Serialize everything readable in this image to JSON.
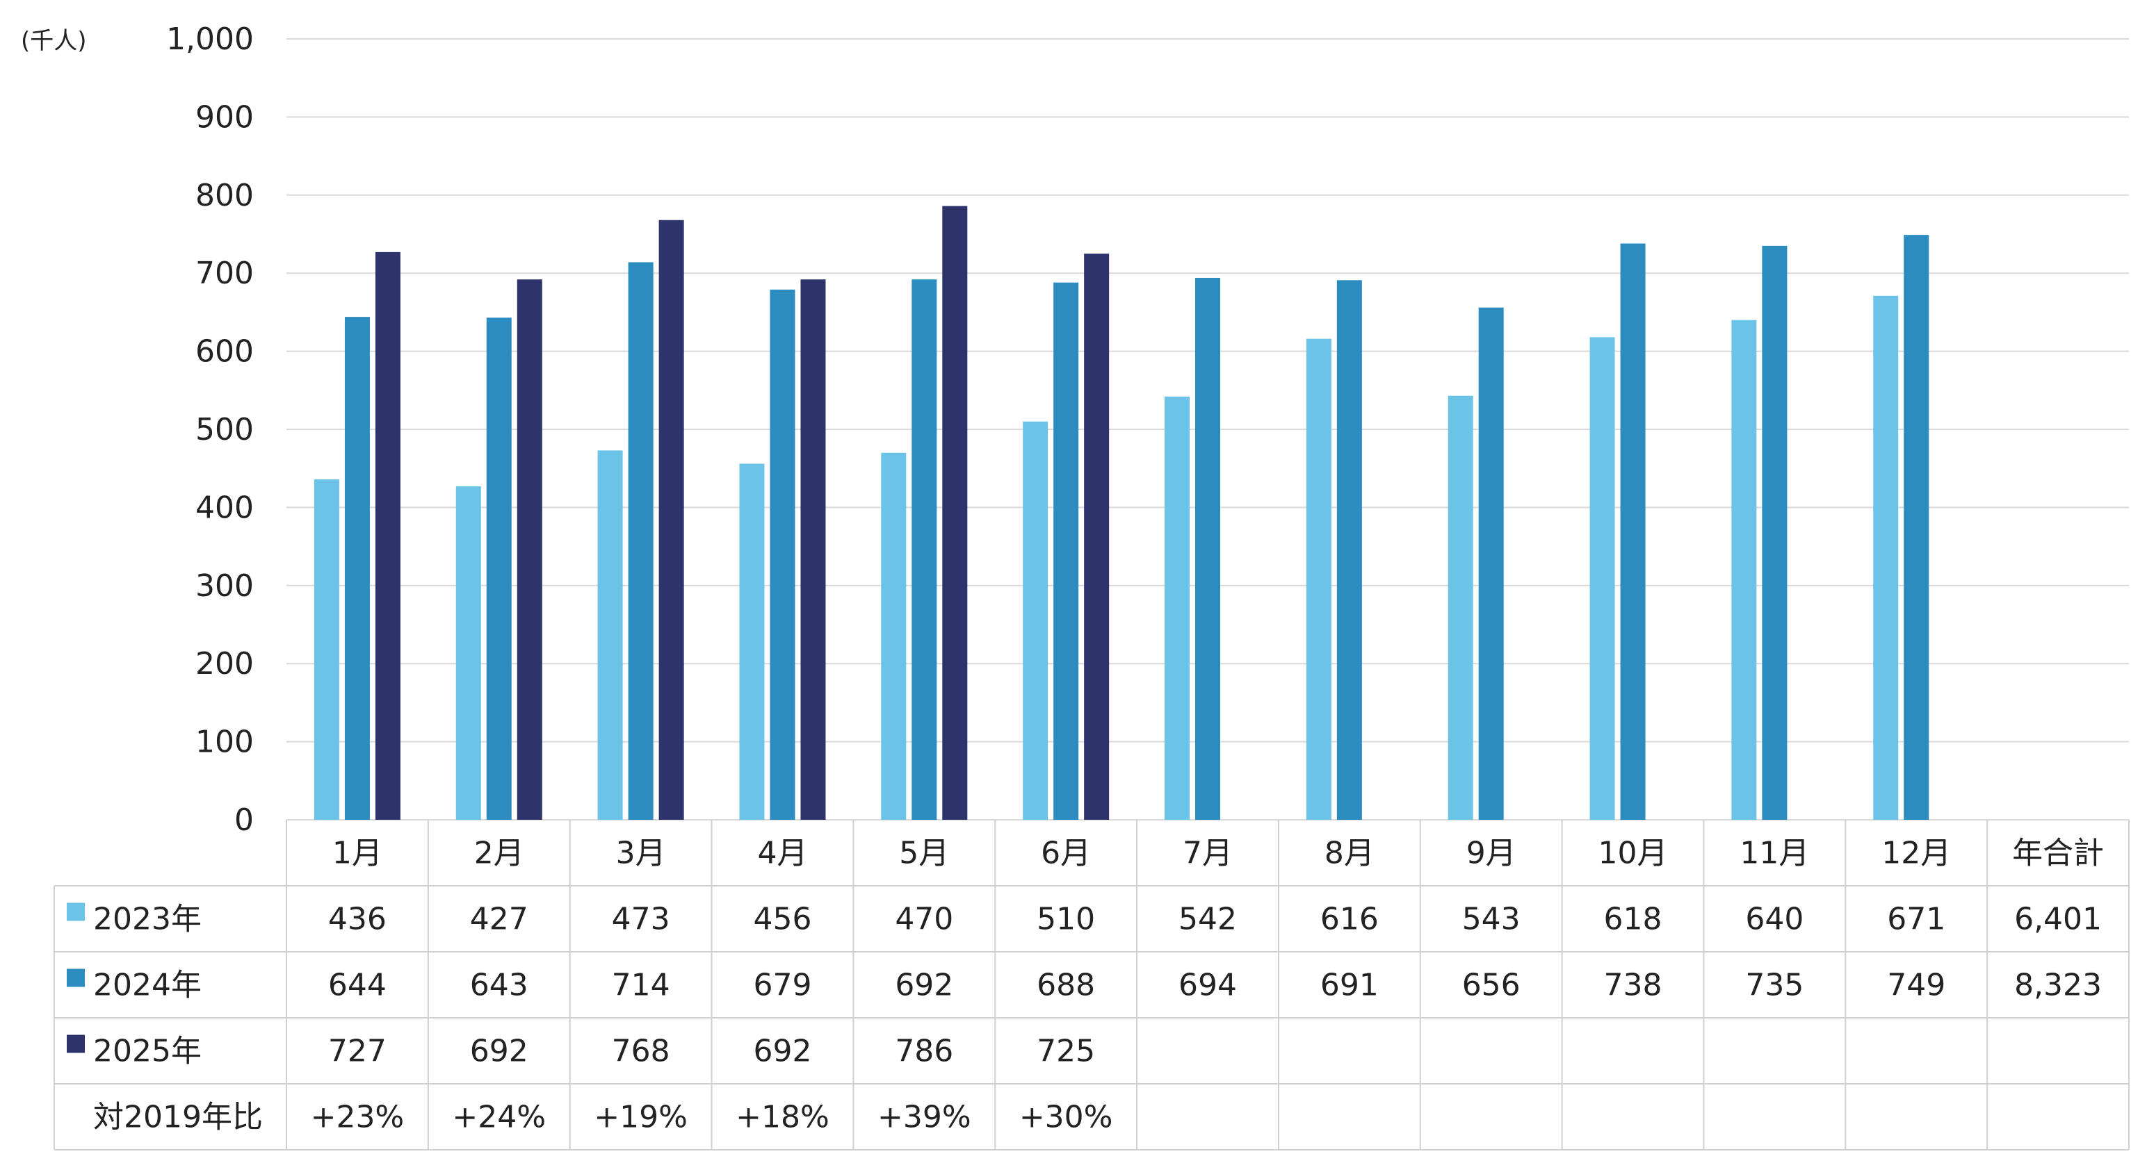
{
  "chart_data": {
    "type": "bar",
    "unit_label": "(千人)",
    "ylim": [
      0,
      1000
    ],
    "yticks": [
      "0",
      "100",
      "200",
      "300",
      "400",
      "500",
      "600",
      "700",
      "800",
      "900",
      "1,000"
    ],
    "ytick_values": [
      0,
      100,
      200,
      300,
      400,
      500,
      600,
      700,
      800,
      900,
      1000
    ],
    "grid": true,
    "categories": [
      "1月",
      "2月",
      "3月",
      "4月",
      "5月",
      "6月",
      "7月",
      "8月",
      "9月",
      "10月",
      "11月",
      "12月"
    ],
    "total_header": "年合計",
    "series": [
      {
        "name": "2023年",
        "color": "#6cc3e8",
        "values": [
          436,
          427,
          473,
          456,
          470,
          510,
          542,
          616,
          543,
          618,
          640,
          671
        ],
        "labels": [
          "436",
          "427",
          "473",
          "456",
          "470",
          "510",
          "542",
          "616",
          "543",
          "618",
          "640",
          "671"
        ],
        "total": "6,401"
      },
      {
        "name": "2024年",
        "color": "#2c8cbf",
        "values": [
          644,
          643,
          714,
          679,
          692,
          688,
          694,
          691,
          656,
          738,
          735,
          749
        ],
        "labels": [
          "644",
          "643",
          "714",
          "679",
          "692",
          "688",
          "694",
          "691",
          "656",
          "738",
          "735",
          "749"
        ],
        "total": "8,323"
      },
      {
        "name": "2025年",
        "color": "#2e336b",
        "values": [
          727,
          692,
          768,
          692,
          786,
          725,
          null,
          null,
          null,
          null,
          null,
          null
        ],
        "labels": [
          "727",
          "692",
          "768",
          "692",
          "786",
          "725",
          "",
          "",
          "",
          "",
          "",
          ""
        ],
        "total": ""
      }
    ],
    "ratio_row": {
      "label": "対2019年比",
      "values": [
        "+23%",
        "+24%",
        "+19%",
        "+18%",
        "+39%",
        "+30%",
        "",
        "",
        "",
        "",
        "",
        ""
      ],
      "total": ""
    }
  }
}
